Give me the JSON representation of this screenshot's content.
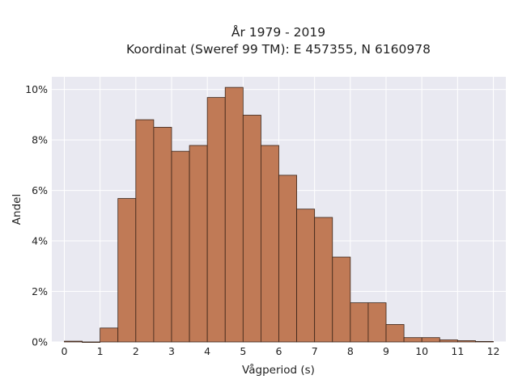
{
  "chart_data": {
    "type": "bar",
    "title_line1": "År 1979 - 2019",
    "title_line2": "Koordinat (Sweref 99 TM): E 457355, N 6160978",
    "xlabel": "Vågperiod (s)",
    "ylabel": "Andel",
    "bin_width": 0.5,
    "x_bin_starts": [
      0,
      0.5,
      1,
      1.5,
      2,
      2.5,
      3,
      3.5,
      4,
      4.5,
      5,
      5.5,
      6,
      6.5,
      7,
      7.5,
      8,
      8.5,
      9,
      9.5,
      10,
      10.5,
      11,
      11.5
    ],
    "values": [
      0.03,
      0.0,
      0.55,
      5.68,
      8.8,
      8.5,
      7.55,
      7.78,
      9.68,
      10.08,
      8.98,
      7.78,
      6.6,
      5.26,
      4.93,
      3.36,
      1.55,
      1.55,
      0.69,
      0.17,
      0.17,
      0.08,
      0.05,
      0.02
    ],
    "xlim": [
      -0.35,
      12.35
    ],
    "ylim": [
      0,
      10.5
    ],
    "x_ticks": [
      0,
      1,
      2,
      3,
      4,
      5,
      6,
      7,
      8,
      9,
      10,
      11,
      12
    ],
    "y_ticks": [
      0,
      2,
      4,
      6,
      8,
      10
    ],
    "y_tick_labels": [
      "0%",
      "2%",
      "4%",
      "6%",
      "8%",
      "10%"
    ],
    "grid": true,
    "colors": {
      "bar_fill": "#c07a56",
      "bar_edge": "#3a2418",
      "plot_bg": "#e9e9f1",
      "grid": "#ffffff"
    }
  }
}
